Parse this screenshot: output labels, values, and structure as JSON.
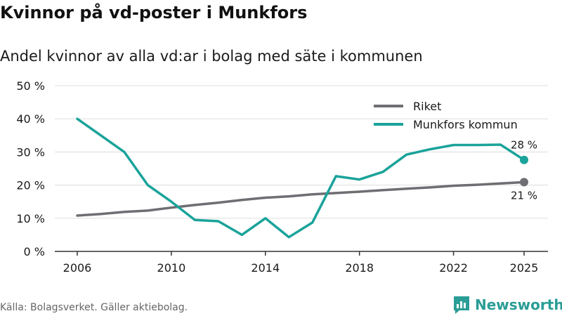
{
  "title": "Kvinnor på vd-poster i Munkfors",
  "subtitle": "Andel kvinnor av alla vd:ar i bolag med säte i kommunen",
  "source": "Källa: Bolagsverket. Gäller aktiebolag.",
  "brand": "Newsworthy",
  "colors": {
    "riket": "#6e6e73",
    "munkfors": "#1aa39a",
    "grid": "#dddddd",
    "text": "#1a1a1a",
    "brand": "#2a9d96"
  },
  "chart_data": {
    "type": "line",
    "x": [
      2006,
      2007,
      2008,
      2009,
      2010,
      2011,
      2012,
      2013,
      2014,
      2015,
      2016,
      2017,
      2018,
      2019,
      2020,
      2021,
      2022,
      2023,
      2024,
      2025
    ],
    "series": [
      {
        "name": "Riket",
        "values": [
          10.8,
          11.3,
          11.9,
          12.3,
          13.2,
          14.0,
          14.7,
          15.5,
          16.2,
          16.6,
          17.2,
          17.6,
          18.0,
          18.5,
          18.9,
          19.3,
          19.8,
          20.1,
          20.5,
          20.9
        ],
        "end_label": "21 %"
      },
      {
        "name": "Munkfors kommun",
        "values": [
          40.0,
          35.0,
          30.0,
          20.0,
          15.0,
          9.5,
          9.1,
          5.0,
          10.0,
          4.3,
          8.7,
          22.7,
          21.7,
          24.0,
          29.2,
          30.8,
          32.1,
          32.1,
          32.2,
          27.6
        ],
        "end_label": "28 %"
      }
    ],
    "ylim": [
      0,
      50
    ],
    "yticks": [
      0,
      10,
      20,
      30,
      40,
      50
    ],
    "ytick_labels": [
      "0 %",
      "10 %",
      "20 %",
      "30 %",
      "40 %",
      "50 %"
    ],
    "xticks": [
      2006,
      2010,
      2014,
      2018,
      2022,
      2025
    ],
    "xtick_labels": [
      "2006",
      "2010",
      "2014",
      "2018",
      "2022",
      "2025"
    ],
    "legend": "top-right",
    "grid": true,
    "xlabel": "",
    "ylabel": ""
  }
}
